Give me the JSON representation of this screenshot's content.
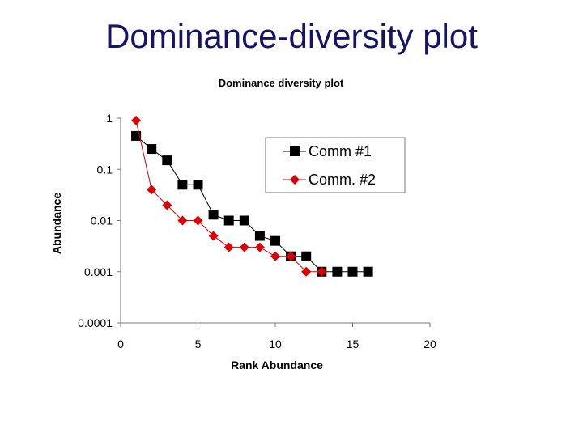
{
  "slide": {
    "title": "Dominance-diversity plot"
  },
  "chart_data": {
    "type": "scatter",
    "title": "Dominance diversity plot",
    "xlabel": "Rank Abundance",
    "ylabel": "Abundance",
    "xlim": [
      0,
      20
    ],
    "ylim": [
      0.0001,
      1
    ],
    "yscale": "log",
    "x_ticks": [
      0,
      5,
      10,
      15,
      20
    ],
    "x_tick_labels": [
      "0",
      "5",
      "10",
      "15",
      "20"
    ],
    "y_ticks": [
      1,
      0.1,
      0.01,
      0.001,
      0.0001
    ],
    "y_tick_labels": [
      "1",
      "0.1",
      "0.01",
      "0.001",
      "0.0001"
    ],
    "grid": false,
    "legend_position": "top-right",
    "series": [
      {
        "name": "Comm #1",
        "color": "#000000",
        "marker": "square",
        "x": [
          1,
          2,
          3,
          4,
          5,
          6,
          7,
          8,
          9,
          10,
          11,
          12,
          13,
          14,
          15,
          16
        ],
        "y": [
          0.45,
          0.25,
          0.15,
          0.05,
          0.05,
          0.013,
          0.01,
          0.01,
          0.005,
          0.004,
          0.002,
          0.002,
          0.001,
          0.001,
          0.001,
          0.001
        ]
      },
      {
        "name": "Comm. #2",
        "color": "#dd0000",
        "marker": "diamond",
        "x": [
          1,
          2,
          3,
          4,
          5,
          6,
          7,
          8,
          9,
          10,
          11,
          12,
          13
        ],
        "y": [
          0.9,
          0.04,
          0.02,
          0.01,
          0.01,
          0.005,
          0.003,
          0.003,
          0.003,
          0.002,
          0.002,
          0.001,
          0.001
        ]
      }
    ]
  }
}
